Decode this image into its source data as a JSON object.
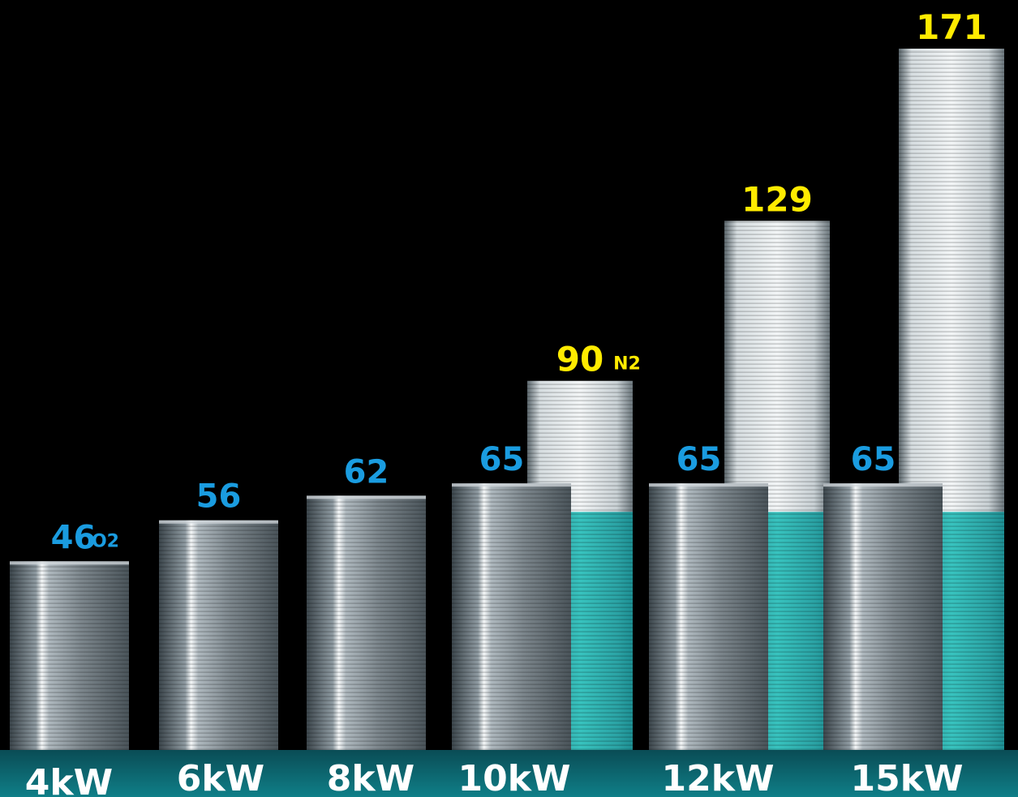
{
  "chart_data": {
    "type": "bar",
    "categories": [
      "4kW",
      "6kW",
      "8kW",
      "10kW",
      "12kW",
      "15kW"
    ],
    "series": [
      {
        "name": "O2",
        "values": [
          46,
          56,
          62,
          65,
          65,
          65
        ],
        "color": "#1a9ce0",
        "unit_label": "O2"
      },
      {
        "name": "N2",
        "values": [
          null,
          null,
          null,
          90,
          129,
          171
        ],
        "color": "#ffeb00",
        "unit_label": "N2"
      }
    ],
    "title": "",
    "xlabel": "",
    "ylabel": "",
    "ylim": [
      0,
      171
    ],
    "grid": false,
    "legend": "inline-labels"
  },
  "colors": {
    "background": "#000000",
    "floor": "#0d6670",
    "bar_steel": "#9aa6ad",
    "n2_fill": "#1fb7b4",
    "category_label": "#ffffff"
  }
}
